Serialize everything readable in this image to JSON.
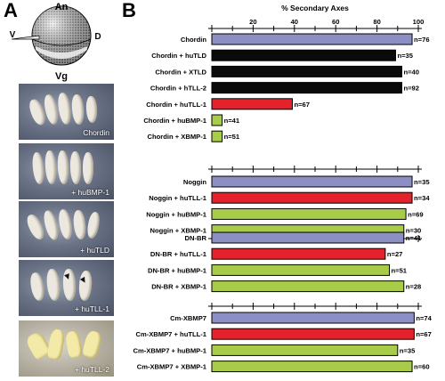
{
  "panel_a": {
    "letter": "A",
    "diagram": {
      "an": "An",
      "vg": "Vg",
      "v": "V",
      "d": "D"
    },
    "photos": [
      "Chordin",
      "+ huBMP-1",
      "+ huTLD",
      "+ huTLL-1",
      "+ huTLL-2"
    ]
  },
  "panel_b": {
    "letter": "B"
  },
  "chart_data": {
    "type": "bar",
    "orientation": "horizontal",
    "xlabel": "% Secondary Axes",
    "xlim": [
      0,
      100
    ],
    "xticks": [
      20,
      40,
      60,
      80,
      100
    ],
    "groups": [
      {
        "bars": [
          {
            "label": "Chordin",
            "value": 97,
            "n": "n=76",
            "color": "#8b8fc4"
          },
          {
            "label": "Chordin + huTLD",
            "value": 89,
            "n": "n=35",
            "color": "#0a0a0a"
          },
          {
            "label": "Chordin + XTLD",
            "value": 92,
            "n": "n=40",
            "color": "#0a0a0a"
          },
          {
            "label": "Chordin + hTLL-2",
            "value": 92,
            "n": "n=92",
            "color": "#0a0a0a"
          },
          {
            "label": "Chordin + huTLL-1",
            "value": 39,
            "n": "n=67",
            "color": "#e4222b"
          },
          {
            "label": "Chordin + huBMP-1",
            "value": 5,
            "n": "n=41",
            "color": "#a8cc4a"
          },
          {
            "label": "Chordin + XBMP-1",
            "value": 5,
            "n": "n=51",
            "color": "#a8cc4a"
          }
        ]
      },
      {
        "bars": [
          {
            "label": "Noggin",
            "value": 97,
            "n": "n=35",
            "color": "#8b8fc4"
          },
          {
            "label": "Noggin + huTLL-1",
            "value": 97,
            "n": "n=34",
            "color": "#e4222b"
          },
          {
            "label": "Noggin + huBMP-1",
            "value": 94,
            "n": "n=69",
            "color": "#a8cc4a"
          },
          {
            "label": "Noggin + XBMP-1",
            "value": 93,
            "n": "n=30",
            "color": "#a8cc4a"
          }
        ]
      },
      {
        "bars": [
          {
            "label": "DN-BR",
            "value": 93,
            "n": "n=41",
            "color": "#8b8fc4"
          },
          {
            "label": "DN-BR + huTLL-1",
            "value": 84,
            "n": "n=27",
            "color": "#e4222b"
          },
          {
            "label": "DN-BR + huBMP-1",
            "value": 86,
            "n": "n=51",
            "color": "#a8cc4a"
          },
          {
            "label": "DN-BR + XBMP-1",
            "value": 93,
            "n": "n=28",
            "color": "#a8cc4a"
          }
        ]
      },
      {
        "bars": [
          {
            "label": "Cm-XBMP7",
            "value": 98,
            "n": "n=74",
            "color": "#8b8fc4"
          },
          {
            "label": "Cm-XBMP7 + huTLL-1",
            "value": 98,
            "n": "n=67",
            "color": "#e4222b"
          },
          {
            "label": "Cm-XBMP7 + huBMP-1",
            "value": 90,
            "n": "n=35",
            "color": "#a8cc4a"
          },
          {
            "label": "Cm-XBMP7 + XBMP-1",
            "value": 97,
            "n": "n=60",
            "color": "#a8cc4a"
          }
        ]
      }
    ]
  }
}
